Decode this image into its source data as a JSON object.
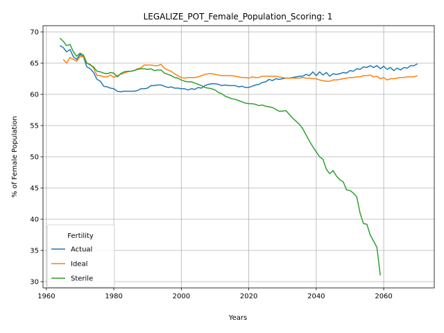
{
  "chart_data": {
    "type": "line",
    "title": "LEGALIZE_POT_Female_Population_Scoring: 1",
    "xlabel": "Years",
    "ylabel": "% of Female Population",
    "xlim": [
      1959,
      2075
    ],
    "ylim": [
      29,
      71
    ],
    "xticks": [
      1960,
      1980,
      2000,
      2020,
      2040,
      2060
    ],
    "yticks": [
      30,
      35,
      40,
      45,
      50,
      55,
      60,
      65,
      70
    ],
    "grid": true,
    "legend": {
      "title": "Fertility",
      "placement": "lower-left"
    },
    "series": [
      {
        "name": "Actual",
        "color": "#1f77b4",
        "points": [
          [
            1964,
            67.8
          ],
          [
            1965,
            67.5
          ],
          [
            1966,
            66.8
          ],
          [
            1967,
            67.2
          ],
          [
            1968,
            66.0
          ],
          [
            1969,
            65.6
          ],
          [
            1970,
            66.4
          ],
          [
            1971,
            66.0
          ],
          [
            1972,
            64.4
          ],
          [
            1973,
            64.1
          ],
          [
            1974,
            63.5
          ],
          [
            1975,
            62.4
          ],
          [
            1976,
            62.1
          ],
          [
            1977,
            61.3
          ],
          [
            1978,
            61.2
          ],
          [
            1979,
            61.0
          ],
          [
            1980,
            60.9
          ],
          [
            1981,
            60.5
          ],
          [
            1982,
            60.4
          ],
          [
            1983,
            60.5
          ],
          [
            1984,
            60.5
          ],
          [
            1985,
            60.5
          ],
          [
            1986,
            60.5
          ],
          [
            1987,
            60.6
          ],
          [
            1988,
            60.9
          ],
          [
            1989,
            60.9
          ],
          [
            1990,
            61.0
          ],
          [
            1991,
            61.4
          ],
          [
            1992,
            61.4
          ],
          [
            1993,
            61.5
          ],
          [
            1994,
            61.5
          ],
          [
            1995,
            61.3
          ],
          [
            1996,
            61.1
          ],
          [
            1997,
            61.2
          ],
          [
            1998,
            61.0
          ],
          [
            1999,
            61.0
          ],
          [
            2000,
            60.9
          ],
          [
            2001,
            60.9
          ],
          [
            2002,
            60.7
          ],
          [
            2003,
            60.9
          ],
          [
            2004,
            60.8
          ],
          [
            2005,
            61.1
          ],
          [
            2006,
            61.0
          ],
          [
            2007,
            61.4
          ],
          [
            2008,
            61.6
          ],
          [
            2009,
            61.7
          ],
          [
            2010,
            61.7
          ],
          [
            2011,
            61.6
          ],
          [
            2012,
            61.4
          ],
          [
            2013,
            61.5
          ],
          [
            2014,
            61.4
          ],
          [
            2015,
            61.4
          ],
          [
            2016,
            61.4
          ],
          [
            2017,
            61.2
          ],
          [
            2018,
            61.3
          ],
          [
            2019,
            61.1
          ],
          [
            2020,
            61.1
          ],
          [
            2021,
            61.3
          ],
          [
            2022,
            61.5
          ],
          [
            2023,
            61.6
          ],
          [
            2024,
            61.9
          ],
          [
            2025,
            62.0
          ],
          [
            2026,
            62.4
          ],
          [
            2027,
            62.2
          ],
          [
            2028,
            62.5
          ],
          [
            2029,
            62.4
          ],
          [
            2030,
            62.5
          ],
          [
            2031,
            62.6
          ],
          [
            2032,
            62.6
          ],
          [
            2033,
            62.7
          ],
          [
            2034,
            62.8
          ],
          [
            2035,
            62.9
          ],
          [
            2036,
            62.9
          ],
          [
            2037,
            63.2
          ],
          [
            2038,
            63.0
          ],
          [
            2039,
            63.6
          ],
          [
            2040,
            63.0
          ],
          [
            2041,
            63.6
          ],
          [
            2042,
            63.1
          ],
          [
            2043,
            63.5
          ],
          [
            2044,
            62.9
          ],
          [
            2045,
            63.3
          ],
          [
            2046,
            63.2
          ],
          [
            2047,
            63.3
          ],
          [
            2048,
            63.5
          ],
          [
            2049,
            63.4
          ],
          [
            2050,
            63.8
          ],
          [
            2051,
            63.7
          ],
          [
            2052,
            64.1
          ],
          [
            2053,
            64.0
          ],
          [
            2054,
            64.4
          ],
          [
            2055,
            64.3
          ],
          [
            2056,
            64.6
          ],
          [
            2057,
            64.3
          ],
          [
            2058,
            64.6
          ],
          [
            2059,
            64.1
          ],
          [
            2060,
            64.5
          ],
          [
            2061,
            64.0
          ],
          [
            2062,
            64.3
          ],
          [
            2063,
            63.8
          ],
          [
            2064,
            64.2
          ],
          [
            2065,
            63.9
          ],
          [
            2066,
            64.3
          ],
          [
            2067,
            64.2
          ],
          [
            2068,
            64.6
          ],
          [
            2069,
            64.6
          ],
          [
            2070,
            64.9
          ]
        ]
      },
      {
        "name": "Ideal",
        "color": "#ff7f0e",
        "points": [
          [
            1965,
            65.6
          ],
          [
            1966,
            65.0
          ],
          [
            1967,
            65.9
          ],
          [
            1968,
            65.6
          ],
          [
            1969,
            65.3
          ],
          [
            1970,
            66.1
          ],
          [
            1971,
            66.0
          ],
          [
            1972,
            65.0
          ],
          [
            1973,
            64.8
          ],
          [
            1974,
            64.2
          ],
          [
            1975,
            63.0
          ],
          [
            1976,
            63.0
          ],
          [
            1977,
            62.8
          ],
          [
            1978,
            62.8
          ],
          [
            1979,
            63.1
          ],
          [
            1980,
            62.7
          ],
          [
            1981,
            63.0
          ],
          [
            1982,
            63.2
          ],
          [
            1983,
            63.4
          ],
          [
            1984,
            63.6
          ],
          [
            1985,
            63.7
          ],
          [
            1986,
            63.8
          ],
          [
            1987,
            64.1
          ],
          [
            1988,
            64.2
          ],
          [
            1989,
            64.7
          ],
          [
            1990,
            64.7
          ],
          [
            1991,
            64.7
          ],
          [
            1992,
            64.6
          ],
          [
            1993,
            64.6
          ],
          [
            1994,
            64.8
          ],
          [
            1995,
            64.2
          ],
          [
            1996,
            63.9
          ],
          [
            1997,
            63.7
          ],
          [
            1998,
            63.3
          ],
          [
            1999,
            63.0
          ],
          [
            2000,
            62.7
          ],
          [
            2001,
            62.6
          ],
          [
            2002,
            62.7
          ],
          [
            2003,
            62.7
          ],
          [
            2004,
            62.7
          ],
          [
            2005,
            62.8
          ],
          [
            2006,
            63.0
          ],
          [
            2007,
            63.2
          ],
          [
            2008,
            63.3
          ],
          [
            2009,
            63.3
          ],
          [
            2010,
            63.2
          ],
          [
            2011,
            63.1
          ],
          [
            2012,
            63.0
          ],
          [
            2013,
            63.0
          ],
          [
            2014,
            63.0
          ],
          [
            2015,
            63.0
          ],
          [
            2016,
            62.9
          ],
          [
            2017,
            62.8
          ],
          [
            2018,
            62.7
          ],
          [
            2019,
            62.7
          ],
          [
            2020,
            62.6
          ],
          [
            2021,
            62.8
          ],
          [
            2022,
            62.7
          ],
          [
            2023,
            62.7
          ],
          [
            2024,
            62.9
          ],
          [
            2025,
            62.9
          ],
          [
            2026,
            62.9
          ],
          [
            2027,
            62.9
          ],
          [
            2028,
            62.9
          ],
          [
            2029,
            62.8
          ],
          [
            2030,
            62.7
          ],
          [
            2031,
            62.6
          ],
          [
            2032,
            62.6
          ],
          [
            2033,
            62.6
          ],
          [
            2034,
            62.6
          ],
          [
            2035,
            62.6
          ],
          [
            2036,
            62.7
          ],
          [
            2037,
            62.6
          ],
          [
            2038,
            62.6
          ],
          [
            2039,
            62.5
          ],
          [
            2040,
            62.5
          ],
          [
            2041,
            62.3
          ],
          [
            2042,
            62.2
          ],
          [
            2043,
            62.1
          ],
          [
            2044,
            62.1
          ],
          [
            2045,
            62.3
          ],
          [
            2046,
            62.3
          ],
          [
            2047,
            62.4
          ],
          [
            2048,
            62.5
          ],
          [
            2049,
            62.6
          ],
          [
            2050,
            62.7
          ],
          [
            2051,
            62.7
          ],
          [
            2052,
            62.8
          ],
          [
            2053,
            62.8
          ],
          [
            2054,
            63.0
          ],
          [
            2055,
            63.0
          ],
          [
            2056,
            63.1
          ],
          [
            2057,
            62.8
          ],
          [
            2058,
            62.9
          ],
          [
            2059,
            62.5
          ],
          [
            2060,
            62.7
          ],
          [
            2061,
            62.3
          ],
          [
            2062,
            62.5
          ],
          [
            2063,
            62.5
          ],
          [
            2064,
            62.6
          ],
          [
            2065,
            62.7
          ],
          [
            2066,
            62.7
          ],
          [
            2067,
            62.8
          ],
          [
            2068,
            62.8
          ],
          [
            2069,
            62.8
          ],
          [
            2070,
            63.0
          ]
        ]
      },
      {
        "name": "Sterile",
        "color": "#2ca02c",
        "points": [
          [
            1964,
            69.0
          ],
          [
            1965,
            68.5
          ],
          [
            1966,
            67.8
          ],
          [
            1967,
            68.0
          ],
          [
            1968,
            66.8
          ],
          [
            1969,
            66.1
          ],
          [
            1970,
            66.6
          ],
          [
            1971,
            66.3
          ],
          [
            1972,
            65.0
          ],
          [
            1973,
            64.7
          ],
          [
            1974,
            64.4
          ],
          [
            1975,
            63.7
          ],
          [
            1976,
            63.6
          ],
          [
            1977,
            63.4
          ],
          [
            1978,
            63.3
          ],
          [
            1979,
            63.5
          ],
          [
            1980,
            63.4
          ],
          [
            1981,
            62.8
          ],
          [
            1982,
            63.3
          ],
          [
            1983,
            63.6
          ],
          [
            1984,
            63.7
          ],
          [
            1985,
            63.7
          ],
          [
            1986,
            63.8
          ],
          [
            1987,
            64.0
          ],
          [
            1988,
            64.1
          ],
          [
            1989,
            64.1
          ],
          [
            1990,
            64.0
          ],
          [
            1991,
            64.1
          ],
          [
            1992,
            63.8
          ],
          [
            1993,
            63.9
          ],
          [
            1994,
            63.9
          ],
          [
            1995,
            63.4
          ],
          [
            1996,
            63.2
          ],
          [
            1997,
            63.0
          ],
          [
            1998,
            62.7
          ],
          [
            1999,
            62.6
          ],
          [
            2000,
            62.3
          ],
          [
            2001,
            62.1
          ],
          [
            2002,
            62.0
          ],
          [
            2003,
            62.0
          ],
          [
            2004,
            61.8
          ],
          [
            2005,
            61.6
          ],
          [
            2006,
            61.4
          ],
          [
            2007,
            61.1
          ],
          [
            2008,
            61.0
          ],
          [
            2009,
            60.9
          ],
          [
            2010,
            60.7
          ],
          [
            2011,
            60.3
          ],
          [
            2012,
            60.1
          ],
          [
            2013,
            59.7
          ],
          [
            2014,
            59.5
          ],
          [
            2015,
            59.3
          ],
          [
            2016,
            59.2
          ],
          [
            2017,
            59.0
          ],
          [
            2018,
            58.8
          ],
          [
            2019,
            58.6
          ],
          [
            2020,
            58.5
          ],
          [
            2021,
            58.5
          ],
          [
            2022,
            58.4
          ],
          [
            2023,
            58.2
          ],
          [
            2024,
            58.3
          ],
          [
            2025,
            58.1
          ],
          [
            2026,
            58.0
          ],
          [
            2027,
            57.9
          ],
          [
            2028,
            57.6
          ],
          [
            2029,
            57.3
          ],
          [
            2030,
            57.3
          ],
          [
            2031,
            57.4
          ],
          [
            2032,
            56.8
          ],
          [
            2033,
            56.2
          ],
          [
            2034,
            55.7
          ],
          [
            2035,
            55.2
          ],
          [
            2036,
            54.5
          ],
          [
            2037,
            53.5
          ],
          [
            2038,
            52.5
          ],
          [
            2039,
            51.6
          ],
          [
            2040,
            50.8
          ],
          [
            2041,
            50.0
          ],
          [
            2042,
            49.6
          ],
          [
            2043,
            48.0
          ],
          [
            2044,
            47.3
          ],
          [
            2045,
            47.8
          ],
          [
            2046,
            46.9
          ],
          [
            2047,
            46.3
          ],
          [
            2048,
            46.0
          ],
          [
            2049,
            44.7
          ],
          [
            2050,
            44.6
          ],
          [
            2051,
            44.2
          ],
          [
            2052,
            43.6
          ],
          [
            2053,
            41.0
          ],
          [
            2054,
            39.3
          ],
          [
            2055,
            39.2
          ],
          [
            2056,
            37.5
          ],
          [
            2057,
            36.5
          ],
          [
            2058,
            35.5
          ],
          [
            2059,
            31.0
          ]
        ]
      }
    ]
  }
}
